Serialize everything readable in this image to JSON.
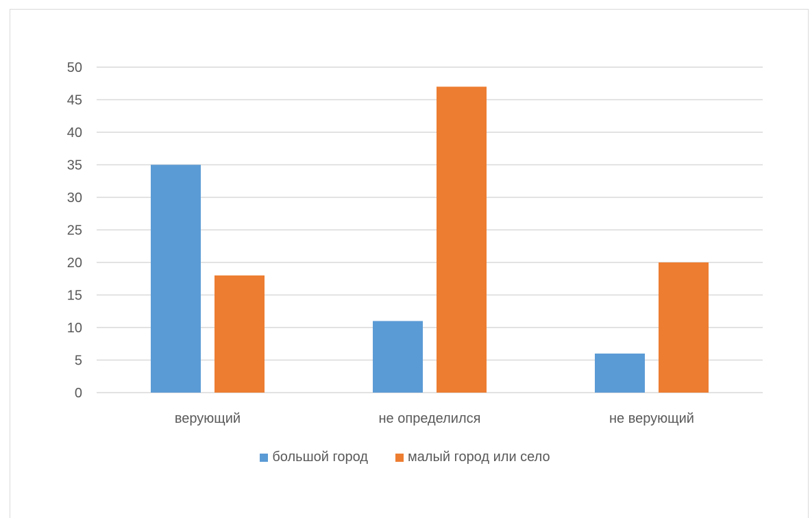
{
  "chart_data": {
    "type": "bar",
    "categories": [
      "верующий",
      "не определился",
      "не верующий"
    ],
    "series": [
      {
        "name": "большой город",
        "values": [
          35,
          11,
          6
        ],
        "color": "#5b9bd5"
      },
      {
        "name": "малый город или село",
        "values": [
          18,
          47,
          20
        ],
        "color": "#ed7d31"
      }
    ],
    "ylim": [
      0,
      50
    ],
    "yticks": [
      0,
      5,
      10,
      15,
      20,
      25,
      30,
      35,
      40,
      45,
      50
    ],
    "grid": true,
    "legend_position": "bottom",
    "title": "",
    "xlabel": "",
    "ylabel": ""
  }
}
